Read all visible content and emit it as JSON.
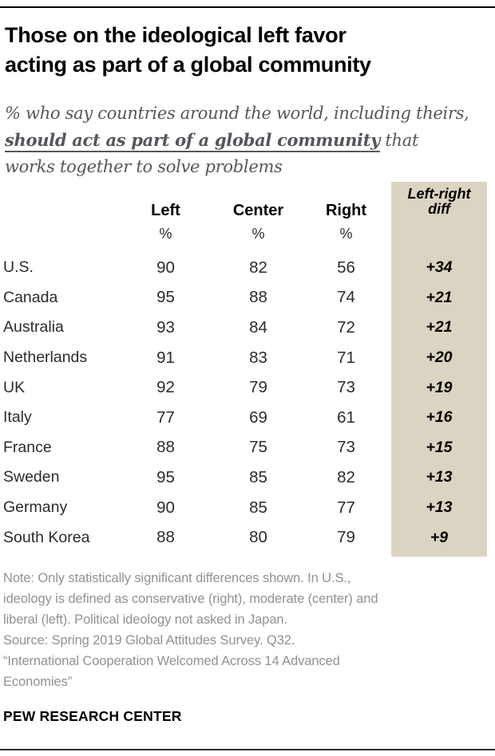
{
  "title": {
    "line1": "Those on the ideological left favor",
    "line2": "acting as part of a global community"
  },
  "subtitle": {
    "line1": "% who say countries around the world, including theirs,",
    "line2_emphasis": "should act as part of a global community",
    "line2_rest": " that",
    "line3": "works together to solve problems"
  },
  "table": {
    "col_headers": {
      "left": "Left",
      "center": "Center",
      "right": "Right",
      "diff_line1": "Left-right",
      "diff_line2": "diff"
    },
    "percent": "%",
    "rows": [
      {
        "country": "U.S.",
        "left": "90",
        "center": "82",
        "right": "56",
        "diff": "+34"
      },
      {
        "country": "Canada",
        "left": "95",
        "center": "88",
        "right": "74",
        "diff": "+21"
      },
      {
        "country": "Australia",
        "left": "93",
        "center": "84",
        "right": "72",
        "diff": "+21"
      },
      {
        "country": "Netherlands",
        "left": "91",
        "center": "83",
        "right": "71",
        "diff": "+20"
      },
      {
        "country": "UK",
        "left": "92",
        "center": "79",
        "right": "73",
        "diff": "+19"
      },
      {
        "country": "Italy",
        "left": "77",
        "center": "69",
        "right": "61",
        "diff": "+16"
      },
      {
        "country": "France",
        "left": "88",
        "center": "75",
        "right": "73",
        "diff": "+15"
      },
      {
        "country": "Sweden",
        "left": "95",
        "center": "85",
        "right": "82",
        "diff": "+13"
      },
      {
        "country": "Germany",
        "left": "90",
        "center": "85",
        "right": "77",
        "diff": "+13"
      },
      {
        "country": "South Korea",
        "left": "88",
        "center": "80",
        "right": "79",
        "diff": "+9"
      }
    ]
  },
  "notes": {
    "lines": [
      "Note: Only statistically significant differences shown. In U.S.,",
      "ideology is defined as conservative (right), moderate (center) and",
      "liberal (left). Political ideology not asked in Japan.",
      "Source: Spring 2019 Global Attitudes Survey. Q32.",
      "“International Cooperation Welcomed Across 14 Advanced",
      "Economies”"
    ]
  },
  "footer": {
    "brand": "PEW RESEARCH CENTER"
  },
  "colors": {
    "diff_column_bg": "#DBD4C2",
    "ink": "#000000",
    "text": "#2B2B2B",
    "subtitle_gray": "#55565B",
    "note_gray": "#919191"
  },
  "chart_data": {
    "type": "table",
    "title": "Those on the ideological left favor acting as part of a global community",
    "subtitle": "% who say countries around the world, including theirs, should act as part of a global community that works together to solve problems",
    "columns": [
      "Left",
      "Center",
      "Right",
      "Left-right diff"
    ],
    "unit": "%",
    "categories": [
      "U.S.",
      "Canada",
      "Australia",
      "Netherlands",
      "UK",
      "Italy",
      "France",
      "Sweden",
      "Germany",
      "South Korea"
    ],
    "series": [
      {
        "name": "Left",
        "values": [
          90,
          95,
          93,
          91,
          92,
          77,
          88,
          95,
          90,
          88
        ]
      },
      {
        "name": "Center",
        "values": [
          82,
          88,
          84,
          83,
          79,
          69,
          75,
          85,
          85,
          80
        ]
      },
      {
        "name": "Right",
        "values": [
          56,
          74,
          72,
          71,
          73,
          61,
          73,
          82,
          77,
          79
        ]
      },
      {
        "name": "Left-right diff",
        "values": [
          34,
          21,
          21,
          20,
          19,
          16,
          15,
          13,
          13,
          9
        ]
      }
    ],
    "note": "Only statistically significant differences shown. In U.S., ideology is defined as conservative (right), moderate (center) and liberal (left). Political ideology not asked in Japan.",
    "source": "Spring 2019 Global Attitudes Survey. Q32.",
    "report": "International Cooperation Welcomed Across 14 Advanced Economies"
  }
}
